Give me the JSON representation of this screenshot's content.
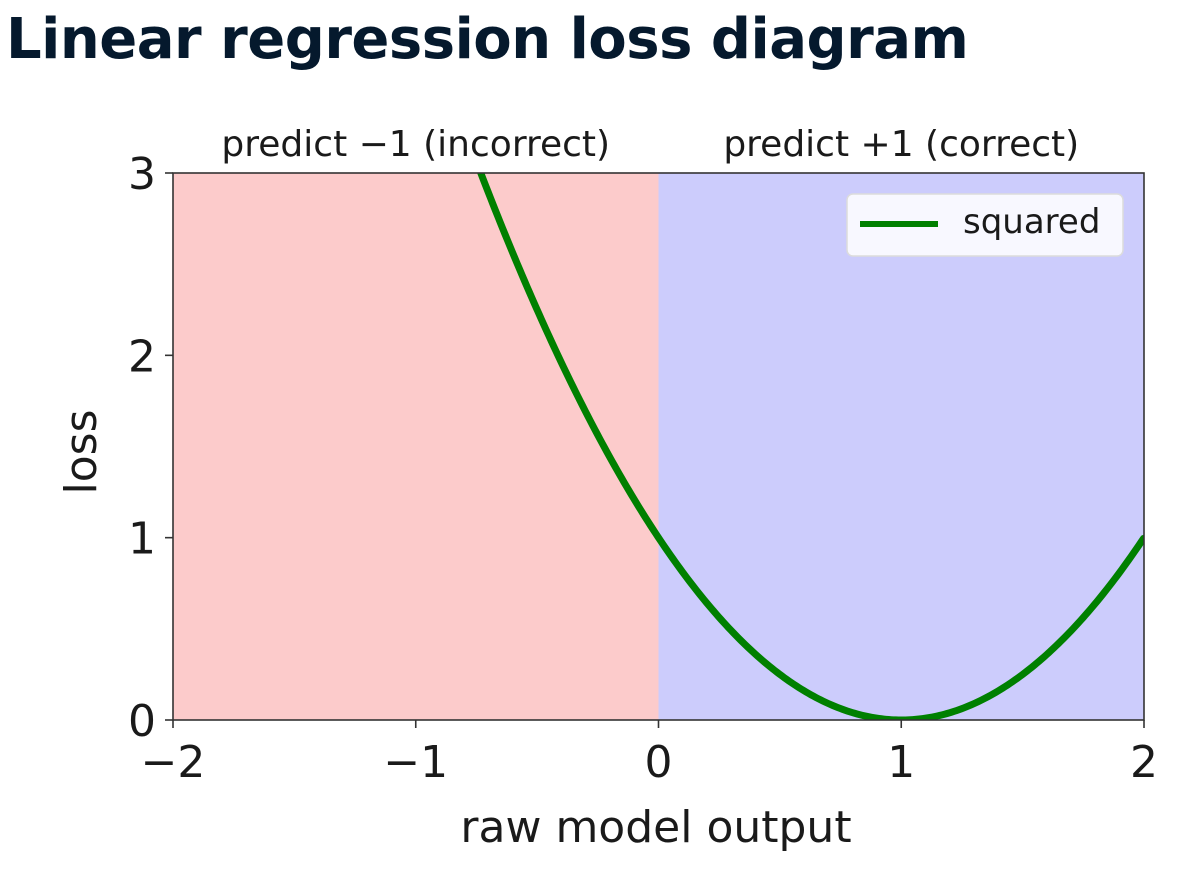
{
  "page": {
    "title": "Linear regression loss diagram"
  },
  "chart_data": {
    "type": "line",
    "xlabel": "raw model output",
    "ylabel": "loss",
    "xlim": [
      -2,
      2
    ],
    "ylim": [
      0,
      3
    ],
    "x_ticks": [
      -2,
      -1,
      0,
      1,
      2
    ],
    "x_tick_labels": [
      "−2",
      "−1",
      "0",
      "1",
      "2"
    ],
    "y_ticks": [
      0,
      1,
      2,
      3
    ],
    "y_tick_labels": [
      "0",
      "1",
      "2",
      "3"
    ],
    "grid": false,
    "regions": [
      {
        "label": "predict −1 (incorrect)",
        "x_range": [
          -2,
          0
        ],
        "color": "#fccbcb"
      },
      {
        "label": "predict +1 (correct)",
        "x_range": [
          0,
          2
        ],
        "color": "#ccccfc"
      }
    ],
    "series": [
      {
        "name": "squared",
        "color": "#008000",
        "formula": "(x - 1)^2",
        "x": [
          -0.732,
          -0.6,
          -0.4,
          -0.2,
          0,
          0.2,
          0.4,
          0.6,
          0.8,
          1.0,
          1.2,
          1.4,
          1.6,
          1.8,
          2.0
        ],
        "y": [
          3.0,
          2.56,
          1.96,
          1.44,
          1.0,
          0.64,
          0.36,
          0.16,
          0.04,
          0.0,
          0.04,
          0.16,
          0.36,
          0.64,
          1.0
        ]
      }
    ],
    "legend": {
      "placement": "top-right"
    }
  }
}
